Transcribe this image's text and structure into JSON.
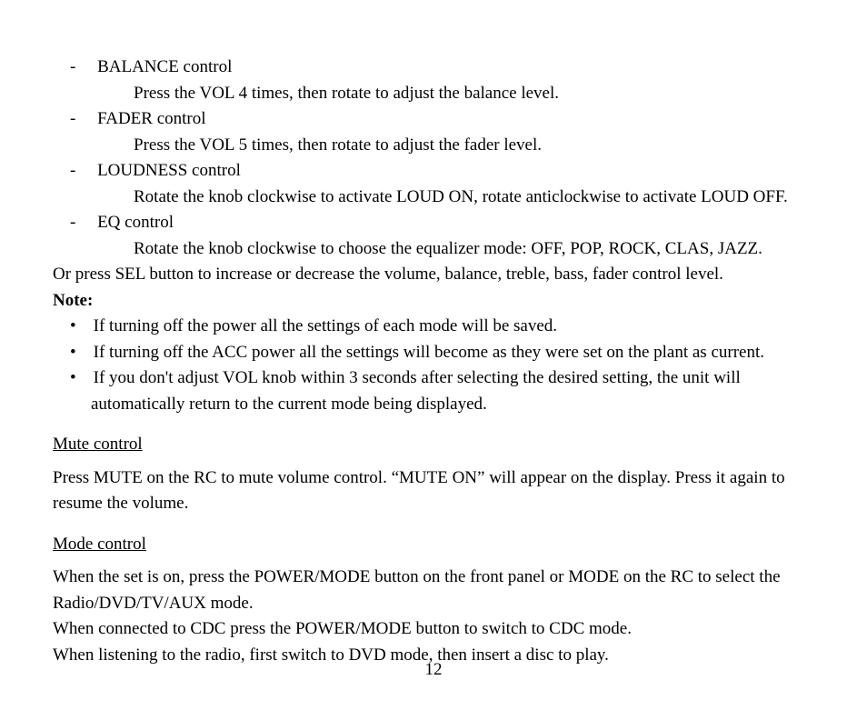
{
  "dash_items": [
    {
      "title": "BALANCE control",
      "desc": "Press the VOL 4 times, then rotate to adjust the balance level."
    },
    {
      "title": "FADER control",
      "desc": "Press the VOL 5 times, then rotate to adjust the fader level."
    },
    {
      "title": "LOUDNESS control",
      "desc": "Rotate the knob clockwise to activate LOUD ON, rotate anticlockwise to activate LOUD OFF."
    },
    {
      "title": "EQ control",
      "desc": "Rotate the knob clockwise to choose the equalizer mode: OFF, POP, ROCK, CLAS, JAZZ."
    }
  ],
  "or_line": "Or press SEL button to increase or decrease the volume, balance, treble, bass, fader control level.",
  "note_label": "Note:",
  "notes": [
    "If turning off the power all the settings of each mode will be saved.",
    "If turning off the ACC power all the settings will become as they were set on the plant as current.",
    "If you don't adjust VOL knob within 3 seconds after selecting the desired setting, the unit will automatically return to the current mode being displayed."
  ],
  "mute_heading": "Mute control",
  "mute_body": "Press MUTE on the RC to mute volume control. “MUTE ON” will appear on the display. Press it again to resume the volume.",
  "mode_heading": "Mode control",
  "mode_lines": [
    "When the set is on, press the POWER/MODE button on the front panel or MODE on the RC to select the Radio/DVD/TV/AUX mode.",
    "When connected to CDC press the POWER/MODE button to switch to CDC mode.",
    "When listening to the radio, first switch to DVD mode, then insert a disc to play."
  ],
  "page_number": "12"
}
